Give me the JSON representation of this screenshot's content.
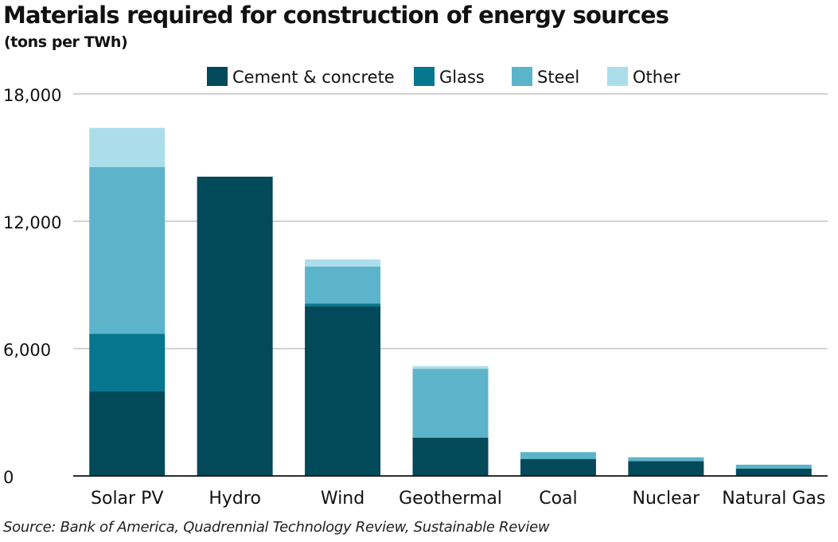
{
  "chart_data": {
    "type": "bar",
    "stacked": true,
    "title": "Materials required for construction of energy sources",
    "subtitle": "(tons per TWh)",
    "xlabel": "",
    "ylabel": "",
    "categories": [
      "Solar PV",
      "Hydro",
      "Wind",
      "Geothermal",
      "Coal",
      "Nuclear",
      "Natural Gas"
    ],
    "series": [
      {
        "name": "Cement & concrete",
        "color": "#02495a",
        "values": [
          4000,
          14100,
          8000,
          1800,
          800,
          700,
          350
        ]
      },
      {
        "name": "Glass",
        "color": "#05778f",
        "values": [
          2700,
          0,
          120,
          0,
          0,
          0,
          0
        ]
      },
      {
        "name": "Steel",
        "color": "#5cb4ca",
        "values": [
          7850,
          0,
          1750,
          3250,
          320,
          180,
          180
        ]
      },
      {
        "name": "Other",
        "color": "#abdeea",
        "values": [
          1850,
          0,
          330,
          120,
          0,
          0,
          0
        ]
      }
    ],
    "ylim": [
      0,
      18000
    ],
    "yticks": [
      0,
      6000,
      12000,
      18000
    ],
    "ytick_labels": [
      "0",
      "6,000",
      "12,000",
      "18,000"
    ],
    "grid": true,
    "legend_position": "top"
  },
  "source": "Source: Bank of America, Quadrennial Technology Review, Sustainable Review"
}
